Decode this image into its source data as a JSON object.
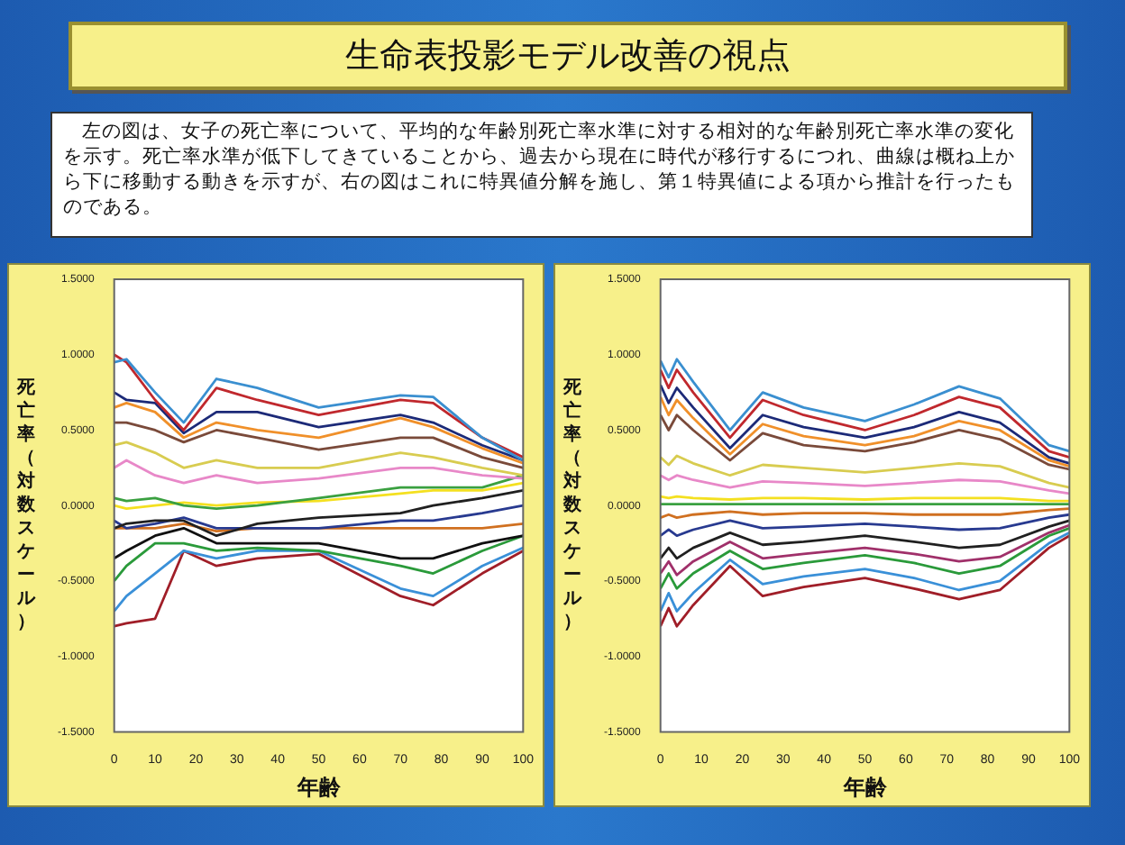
{
  "chart_data": [
    {
      "type": "other",
      "title": "生命表投影モデル改善の視点",
      "annotations": [
        "左の図は、女子の死亡率について、平均的な年齢別死亡率水準に対する相対的な年齢別死亡率水準の変化を示す。死亡率水準が低下してきていることから、過去から現在に時代が移行するにつれ、曲線は概ね上から下に移動する動きを示すが、右の図はこれに特異値分解を施し、第１特異値による項から推計を行ったものである。"
      ]
    },
    {
      "type": "line",
      "xlabel": "年齢",
      "ylabel": "死亡率（対数スケール）",
      "xlim": [
        0,
        100
      ],
      "xticks": [
        0,
        10,
        20,
        30,
        40,
        50,
        60,
        70,
        80,
        90,
        100
      ],
      "ylim": [
        -1.5,
        1.5
      ],
      "yticks": [
        {
          "value": -1.5,
          "label": "-1.5000"
        },
        {
          "value": -1,
          "label": "-1.0000"
        },
        {
          "value": -0.5,
          "label": "-0.5000"
        },
        {
          "value": 0,
          "label": "0.0000"
        },
        {
          "value": 0.5,
          "label": "0.5000"
        },
        {
          "value": 1,
          "label": "1.0000"
        },
        {
          "value": 1.5,
          "label": "1.5000"
        }
      ],
      "grid": false,
      "legend": false,
      "marker": "none",
      "line_style": "solid",
      "x": [
        0,
        3,
        10,
        17,
        25,
        35,
        50,
        70,
        78,
        90,
        100
      ],
      "series": [
        {
          "color": "#3a8fd0",
          "values": [
            0.95,
            0.97,
            0.75,
            0.55,
            0.84,
            0.78,
            0.65,
            0.73,
            0.72,
            0.45,
            0.3
          ]
        },
        {
          "color": "#c0282d",
          "values": [
            1.0,
            0.95,
            0.7,
            0.5,
            0.78,
            0.7,
            0.6,
            0.7,
            0.68,
            0.45,
            0.32
          ]
        },
        {
          "color": "#1c2a78",
          "values": [
            0.75,
            0.7,
            0.68,
            0.48,
            0.62,
            0.62,
            0.52,
            0.6,
            0.55,
            0.4,
            0.3
          ]
        },
        {
          "color": "#f0902a",
          "values": [
            0.65,
            0.68,
            0.62,
            0.45,
            0.55,
            0.5,
            0.45,
            0.58,
            0.52,
            0.38,
            0.28
          ]
        },
        {
          "color": "#7a4a3a",
          "values": [
            0.55,
            0.55,
            0.5,
            0.42,
            0.5,
            0.45,
            0.37,
            0.45,
            0.45,
            0.32,
            0.25
          ]
        },
        {
          "color": "#d8cc50",
          "values": [
            0.4,
            0.42,
            0.35,
            0.25,
            0.3,
            0.25,
            0.25,
            0.35,
            0.32,
            0.25,
            0.2
          ]
        },
        {
          "color": "#e888c8",
          "values": [
            0.25,
            0.3,
            0.2,
            0.15,
            0.2,
            0.15,
            0.18,
            0.25,
            0.25,
            0.2,
            0.18
          ]
        },
        {
          "color": "#3aa040",
          "values": [
            0.05,
            0.03,
            0.05,
            0.0,
            -0.02,
            0.0,
            0.05,
            0.12,
            0.12,
            0.12,
            0.2
          ]
        },
        {
          "color": "#f4e020",
          "values": [
            0.0,
            -0.02,
            0.0,
            0.02,
            0.0,
            0.02,
            0.03,
            0.08,
            0.1,
            0.1,
            0.15
          ]
        },
        {
          "color": "#202020",
          "values": [
            -0.15,
            -0.12,
            -0.1,
            -0.1,
            -0.2,
            -0.12,
            -0.08,
            -0.05,
            0.0,
            0.05,
            0.1
          ]
        },
        {
          "color": "#283a90",
          "values": [
            -0.1,
            -0.15,
            -0.12,
            -0.08,
            -0.15,
            -0.15,
            -0.15,
            -0.1,
            -0.1,
            -0.05,
            0.0
          ]
        },
        {
          "color": "#d07020",
          "values": [
            -0.15,
            -0.15,
            -0.15,
            -0.12,
            -0.17,
            -0.15,
            -0.15,
            -0.15,
            -0.15,
            -0.15,
            -0.12
          ]
        },
        {
          "color": "#101010",
          "values": [
            -0.35,
            -0.3,
            -0.2,
            -0.15,
            -0.25,
            -0.25,
            -0.25,
            -0.35,
            -0.35,
            -0.25,
            -0.2
          ]
        },
        {
          "color": "#2a9a3a",
          "values": [
            -0.5,
            -0.4,
            -0.25,
            -0.25,
            -0.3,
            -0.28,
            -0.3,
            -0.4,
            -0.45,
            -0.3,
            -0.2
          ]
        },
        {
          "color": "#3a90d8",
          "values": [
            -0.7,
            -0.6,
            -0.45,
            -0.3,
            -0.35,
            -0.3,
            -0.3,
            -0.55,
            -0.6,
            -0.4,
            -0.28
          ]
        },
        {
          "color": "#a01e28",
          "values": [
            -0.8,
            -0.78,
            -0.75,
            -0.3,
            -0.4,
            -0.35,
            -0.32,
            -0.6,
            -0.66,
            -0.45,
            -0.3
          ]
        }
      ]
    },
    {
      "type": "line",
      "xlabel": "年齢",
      "ylabel": "死亡率（対数スケール）",
      "xlim": [
        0,
        100
      ],
      "xticks": [
        0,
        10,
        20,
        30,
        40,
        50,
        60,
        70,
        80,
        90,
        100
      ],
      "ylim": [
        -1.5,
        1.5
      ],
      "yticks": [
        {
          "value": -1.5,
          "label": "-1.5000"
        },
        {
          "value": -1,
          "label": "-1.0000"
        },
        {
          "value": -0.5,
          "label": "-0.5000"
        },
        {
          "value": 0,
          "label": "0.0000"
        },
        {
          "value": 0.5,
          "label": "0.5000"
        },
        {
          "value": 1,
          "label": "1.0000"
        },
        {
          "value": 1.5,
          "label": "1.5000"
        }
      ],
      "grid": false,
      "legend": false,
      "marker": "none",
      "line_style": "solid",
      "x": [
        0,
        2,
        4,
        8,
        17,
        25,
        35,
        50,
        62,
        73,
        83,
        95,
        100
      ],
      "series": [
        {
          "color": "#3a8fd0",
          "values": [
            0.96,
            0.85,
            0.97,
            0.82,
            0.5,
            0.75,
            0.65,
            0.56,
            0.67,
            0.79,
            0.71,
            0.4,
            0.36
          ]
        },
        {
          "color": "#c0282d",
          "values": [
            0.9,
            0.78,
            0.9,
            0.75,
            0.45,
            0.7,
            0.6,
            0.5,
            0.6,
            0.72,
            0.65,
            0.36,
            0.32
          ]
        },
        {
          "color": "#1c2a78",
          "values": [
            0.8,
            0.68,
            0.78,
            0.65,
            0.38,
            0.6,
            0.52,
            0.45,
            0.52,
            0.62,
            0.55,
            0.32,
            0.28
          ]
        },
        {
          "color": "#f0902a",
          "values": [
            0.72,
            0.6,
            0.7,
            0.58,
            0.34,
            0.54,
            0.46,
            0.4,
            0.46,
            0.56,
            0.5,
            0.3,
            0.26
          ]
        },
        {
          "color": "#7a4a3a",
          "values": [
            0.6,
            0.5,
            0.6,
            0.5,
            0.3,
            0.48,
            0.4,
            0.36,
            0.42,
            0.5,
            0.44,
            0.27,
            0.24
          ]
        },
        {
          "color": "#d8cc50",
          "values": [
            0.32,
            0.27,
            0.33,
            0.28,
            0.2,
            0.27,
            0.25,
            0.22,
            0.25,
            0.28,
            0.26,
            0.15,
            0.12
          ]
        },
        {
          "color": "#e888c8",
          "values": [
            0.2,
            0.17,
            0.2,
            0.17,
            0.12,
            0.16,
            0.15,
            0.13,
            0.15,
            0.17,
            0.16,
            0.1,
            0.08
          ]
        },
        {
          "color": "#f4e020",
          "values": [
            0.06,
            0.05,
            0.06,
            0.05,
            0.04,
            0.05,
            0.05,
            0.04,
            0.05,
            0.05,
            0.05,
            0.03,
            0.03
          ]
        },
        {
          "color": "#3aa040",
          "values": [
            0.01,
            0.01,
            0.01,
            0.01,
            0.01,
            0.01,
            0.01,
            0.01,
            0.01,
            0.01,
            0.01,
            0.01,
            0.01
          ]
        },
        {
          "color": "#d07020",
          "values": [
            -0.08,
            -0.06,
            -0.08,
            -0.06,
            -0.04,
            -0.06,
            -0.05,
            -0.05,
            -0.06,
            -0.06,
            -0.06,
            -0.03,
            -0.02
          ]
        },
        {
          "color": "#283a90",
          "values": [
            -0.2,
            -0.16,
            -0.2,
            -0.16,
            -0.1,
            -0.15,
            -0.14,
            -0.12,
            -0.14,
            -0.16,
            -0.15,
            -0.08,
            -0.06
          ]
        },
        {
          "color": "#202020",
          "values": [
            -0.35,
            -0.28,
            -0.35,
            -0.28,
            -0.18,
            -0.26,
            -0.24,
            -0.2,
            -0.24,
            -0.28,
            -0.26,
            -0.14,
            -0.1
          ]
        },
        {
          "color": "#a0306a",
          "values": [
            -0.45,
            -0.37,
            -0.46,
            -0.37,
            -0.24,
            -0.35,
            -0.32,
            -0.28,
            -0.32,
            -0.37,
            -0.34,
            -0.18,
            -0.13
          ]
        },
        {
          "color": "#2a9a3a",
          "values": [
            -0.55,
            -0.45,
            -0.55,
            -0.45,
            -0.3,
            -0.42,
            -0.38,
            -0.33,
            -0.38,
            -0.45,
            -0.4,
            -0.2,
            -0.15
          ]
        },
        {
          "color": "#3a90d8",
          "values": [
            -0.7,
            -0.58,
            -0.7,
            -0.58,
            -0.36,
            -0.52,
            -0.47,
            -0.42,
            -0.48,
            -0.56,
            -0.5,
            -0.25,
            -0.18
          ]
        },
        {
          "color": "#a01e28",
          "values": [
            -0.8,
            -0.68,
            -0.8,
            -0.66,
            -0.4,
            -0.6,
            -0.54,
            -0.48,
            -0.55,
            -0.62,
            -0.56,
            -0.28,
            -0.2
          ]
        }
      ]
    }
  ]
}
